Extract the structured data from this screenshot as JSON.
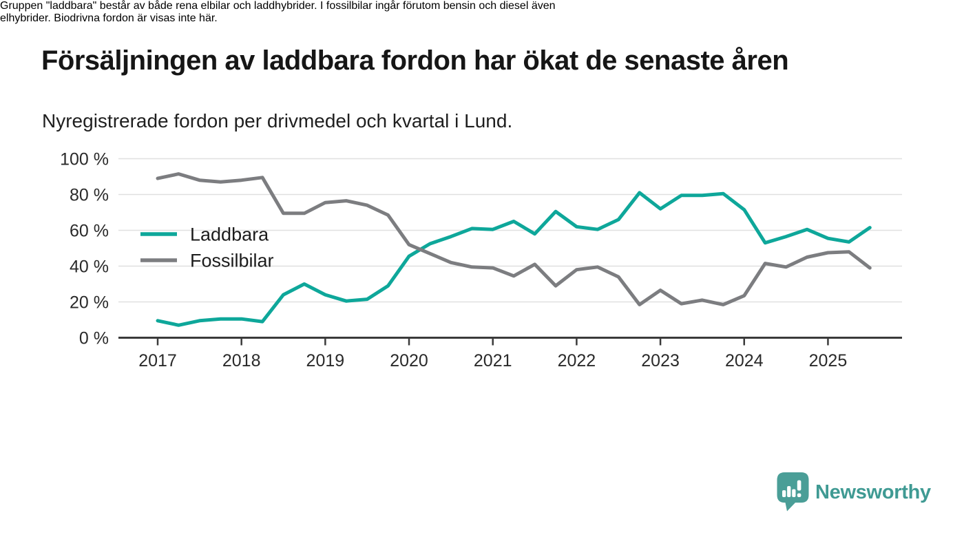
{
  "title": "Försäljningen av laddbara fordon har ökat de senaste åren",
  "subtitle": "Nyregistrerade fordon per drivmedel och kvartal i Lund.",
  "footnote_lines": [
    "Gruppen \"laddbara\" består av både rena elbilar och laddhybrider. I fossilbilar ingår förutom bensin och diesel även",
    "elhybrider. Biodrivna fordon är visas inte här."
  ],
  "branding": {
    "name": "Newsworthy",
    "icon": "speech-bubble-bar-chart-exclamation-icon",
    "icon_color": "#4a9e97",
    "text_color": "#3f9a93"
  },
  "colors": {
    "title_text": "#161616",
    "body_text": "#1f1f1f",
    "axis_line": "#3a3a3a",
    "gridline": "#e0e0e0",
    "tick_label": "#2a2a2a",
    "laddbara_teal": "#0ea79a",
    "fossilbilar_gray": "#7c7d80"
  },
  "chart_data": {
    "type": "line",
    "unit": "%",
    "grid": true,
    "legend_position": "inside-left",
    "ylim": [
      0,
      100
    ],
    "y_ticks": [
      0,
      20,
      40,
      60,
      80,
      100
    ],
    "y_tick_labels": [
      "0 %",
      "20 %",
      "40 %",
      "60 %",
      "80 %",
      "100 %"
    ],
    "x_tick_labels": [
      "2017",
      "2018",
      "2019",
      "2020",
      "2021",
      "2022",
      "2023",
      "2024",
      "2025"
    ],
    "x": [
      "2017 K1",
      "2017 K2",
      "2017 K3",
      "2017 K4",
      "2018 K1",
      "2018 K2",
      "2018 K3",
      "2018 K4",
      "2019 K1",
      "2019 K2",
      "2019 K3",
      "2019 K4",
      "2020 K1",
      "2020 K2",
      "2020 K3",
      "2020 K4",
      "2021 K1",
      "2021 K2",
      "2021 K3",
      "2021 K4",
      "2022 K1",
      "2022 K2",
      "2022 K3",
      "2022 K4",
      "2023 K1",
      "2023 K2",
      "2023 K3",
      "2023 K4",
      "2024 K1",
      "2024 K2",
      "2024 K3",
      "2024 K4",
      "2025 K1",
      "2025 K2",
      "2025 K3"
    ],
    "series": [
      {
        "name": "Laddbara",
        "color": "#0ea79a",
        "values": [
          9.5,
          7,
          9.5,
          10.5,
          10.5,
          9,
          24,
          30,
          24,
          20.5,
          21.5,
          29,
          45.5,
          52.5,
          56.5,
          61,
          60.5,
          65,
          58,
          70.5,
          62,
          60.5,
          66,
          81,
          72,
          79.5,
          79.5,
          80.5,
          71.5,
          53,
          56.5,
          60.5,
          55.5,
          53.5,
          61.5
        ]
      },
      {
        "name": "Fossilbilar",
        "color": "#7c7d80",
        "values": [
          89,
          91.5,
          88,
          87,
          88,
          89.5,
          69.5,
          69.5,
          75.5,
          76.5,
          74,
          68.5,
          52,
          47,
          42,
          39.5,
          39,
          34.5,
          41,
          29,
          38,
          39.5,
          34,
          18.5,
          26.5,
          19,
          21,
          18.5,
          23.5,
          41.5,
          39.5,
          45,
          47.5,
          48,
          39
        ]
      }
    ]
  }
}
